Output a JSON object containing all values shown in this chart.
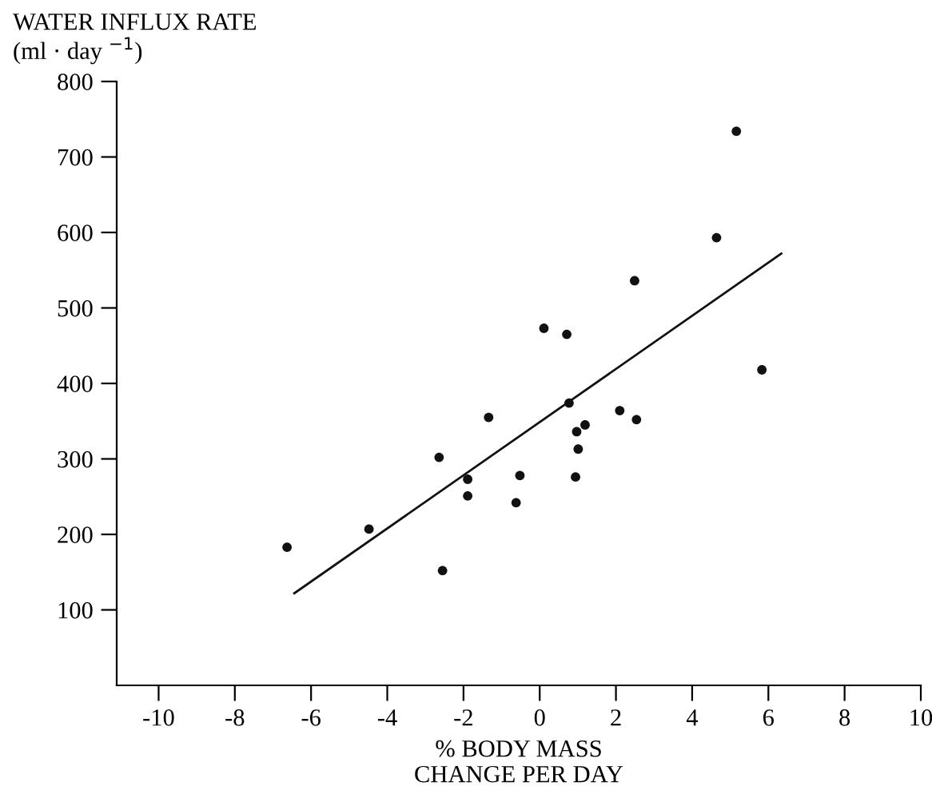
{
  "chart_data": {
    "type": "scatter",
    "ylabel": "WATER INFLUX RATE\n(ml · day $^{−1}$)",
    "xlabel": "% BODY MASS\nCHANGE PER DAY",
    "series": [
      {
        "marker": "circle",
        "color": "#111111",
        "x": [
          -6.63,
          -4.48,
          -2.55,
          -2.64,
          -1.89,
          -1.89,
          -1.34,
          -0.62,
          -0.52,
          0.77,
          2.1,
          2.54,
          5.16,
          4.64,
          2.49,
          0.11,
          0.71,
          5.83,
          0.97,
          1.19,
          1.01,
          0.94
        ],
        "values": [
          183,
          207,
          152,
          302,
          273,
          251,
          355,
          242,
          278,
          374,
          364,
          352,
          734,
          593,
          536,
          473,
          465,
          418,
          336,
          345,
          313,
          276
        ]
      },
      {
        "type": "line",
        "marker": "none",
        "color": "#111111",
        "x": [
          -6.44,
          6.34
        ],
        "values": [
          122,
          572
        ]
      }
    ],
    "xlim": [
      -11.1,
      10
    ],
    "xticks": [
      -10,
      -8,
      -6,
      -4,
      -2,
      0,
      2,
      4,
      6,
      8,
      10
    ],
    "ylim": [
      0,
      800
    ],
    "yticks": [
      100,
      200,
      300,
      400,
      500,
      600,
      700,
      800
    ],
    "grid": false,
    "legend": false
  }
}
